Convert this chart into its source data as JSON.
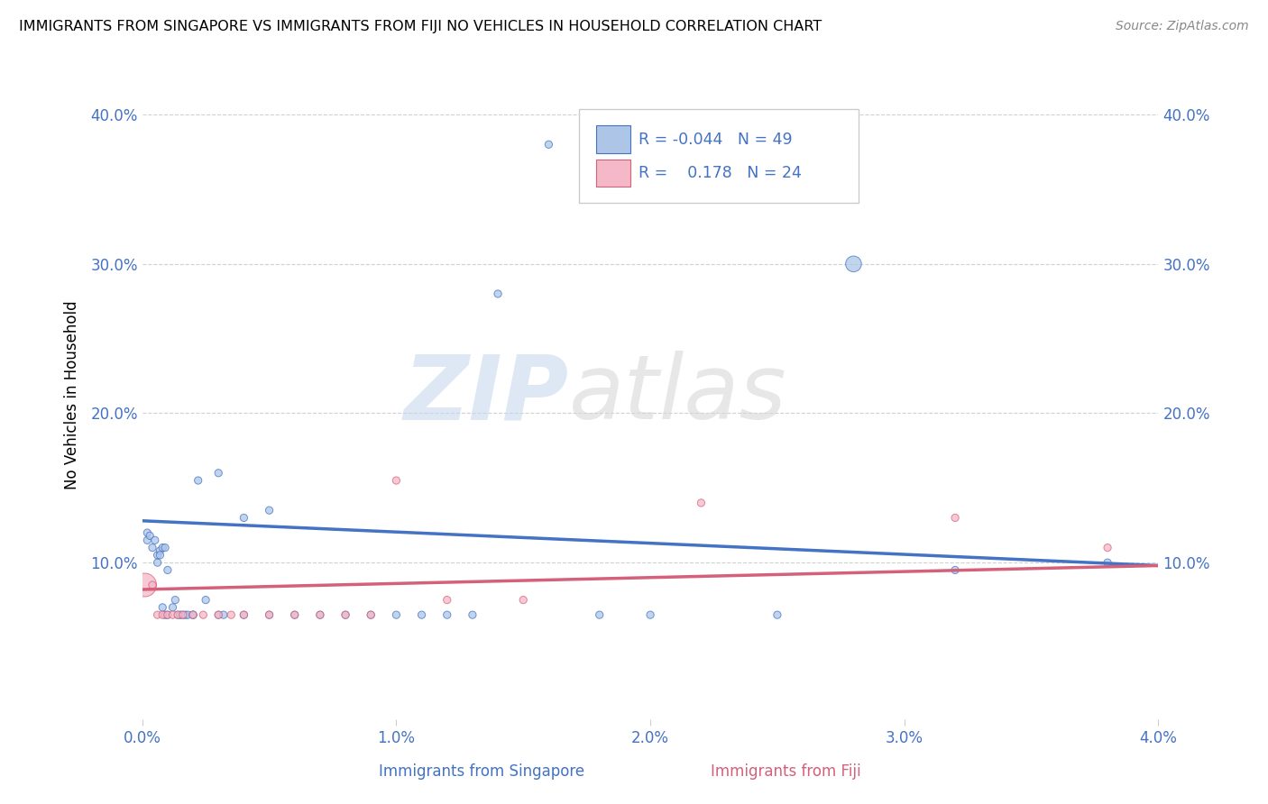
{
  "title": "IMMIGRANTS FROM SINGAPORE VS IMMIGRANTS FROM FIJI NO VEHICLES IN HOUSEHOLD CORRELATION CHART",
  "source": "Source: ZipAtlas.com",
  "xlabel_singapore": "Immigrants from Singapore",
  "xlabel_fiji": "Immigrants from Fiji",
  "ylabel": "No Vehicles in Household",
  "xlim": [
    0.0,
    0.04
  ],
  "ylim": [
    -0.005,
    0.43
  ],
  "x_ticks": [
    0.0,
    0.01,
    0.02,
    0.03,
    0.04
  ],
  "x_tick_labels": [
    "0.0%",
    "1.0%",
    "2.0%",
    "3.0%",
    "4.0%"
  ],
  "y_ticks": [
    0.1,
    0.2,
    0.3,
    0.4
  ],
  "y_tick_labels": [
    "10.0%",
    "20.0%",
    "30.0%",
    "40.0%"
  ],
  "legend_r_singapore": "-0.044",
  "legend_n_singapore": "49",
  "legend_r_fiji": "0.178",
  "legend_n_fiji": "24",
  "color_singapore": "#adc6e8",
  "color_fiji": "#f5b8c8",
  "color_line_singapore": "#4472c4",
  "color_line_fiji": "#d4607a",
  "color_text_blue": "#4472c4",
  "watermark_zip": "ZIP",
  "watermark_atlas": "atlas",
  "singapore_x": [
    0.0002,
    0.0002,
    0.0003,
    0.0004,
    0.0005,
    0.0006,
    0.0006,
    0.0007,
    0.0007,
    0.0008,
    0.0008,
    0.0009,
    0.0009,
    0.001,
    0.001,
    0.0012,
    0.0013,
    0.0014,
    0.0015,
    0.0016,
    0.0017,
    0.0018,
    0.002,
    0.002,
    0.0022,
    0.0025,
    0.003,
    0.003,
    0.0032,
    0.004,
    0.004,
    0.005,
    0.005,
    0.006,
    0.007,
    0.008,
    0.009,
    0.01,
    0.011,
    0.012,
    0.013,
    0.014,
    0.016,
    0.018,
    0.02,
    0.025,
    0.028,
    0.032,
    0.038
  ],
  "singapore_y": [
    0.115,
    0.12,
    0.118,
    0.11,
    0.115,
    0.1,
    0.105,
    0.108,
    0.105,
    0.11,
    0.07,
    0.065,
    0.11,
    0.095,
    0.065,
    0.07,
    0.075,
    0.065,
    0.065,
    0.065,
    0.065,
    0.065,
    0.065,
    0.065,
    0.155,
    0.075,
    0.065,
    0.16,
    0.065,
    0.065,
    0.13,
    0.065,
    0.135,
    0.065,
    0.065,
    0.065,
    0.065,
    0.065,
    0.065,
    0.065,
    0.065,
    0.28,
    0.38,
    0.065,
    0.065,
    0.065,
    0.3,
    0.095,
    0.1
  ],
  "singapore_size": [
    35,
    35,
    35,
    35,
    35,
    35,
    35,
    35,
    35,
    35,
    35,
    35,
    35,
    35,
    35,
    35,
    35,
    35,
    35,
    35,
    35,
    35,
    35,
    35,
    35,
    35,
    35,
    35,
    35,
    35,
    35,
    35,
    35,
    35,
    35,
    35,
    35,
    35,
    35,
    35,
    35,
    35,
    35,
    35,
    35,
    35,
    160,
    35,
    35
  ],
  "fiji_x": [
    0.0001,
    0.0004,
    0.0006,
    0.0008,
    0.001,
    0.0012,
    0.0014,
    0.0016,
    0.002,
    0.0024,
    0.003,
    0.0035,
    0.004,
    0.005,
    0.006,
    0.007,
    0.008,
    0.009,
    0.01,
    0.012,
    0.015,
    0.022,
    0.032,
    0.038
  ],
  "fiji_y": [
    0.085,
    0.085,
    0.065,
    0.065,
    0.065,
    0.065,
    0.065,
    0.065,
    0.065,
    0.065,
    0.065,
    0.065,
    0.065,
    0.065,
    0.065,
    0.065,
    0.065,
    0.065,
    0.155,
    0.075,
    0.075,
    0.14,
    0.13,
    0.11
  ],
  "fiji_size": [
    350,
    35,
    35,
    35,
    35,
    35,
    35,
    35,
    35,
    35,
    35,
    35,
    35,
    35,
    35,
    35,
    35,
    35,
    35,
    35,
    35,
    35,
    35,
    35
  ],
  "trend_sg_x0": 0.0,
  "trend_sg_x1": 0.04,
  "trend_sg_y0": 0.128,
  "trend_sg_y1": 0.098,
  "trend_fj_x0": 0.0,
  "trend_fj_x1": 0.04,
  "trend_fj_y0": 0.082,
  "trend_fj_y1": 0.098
}
